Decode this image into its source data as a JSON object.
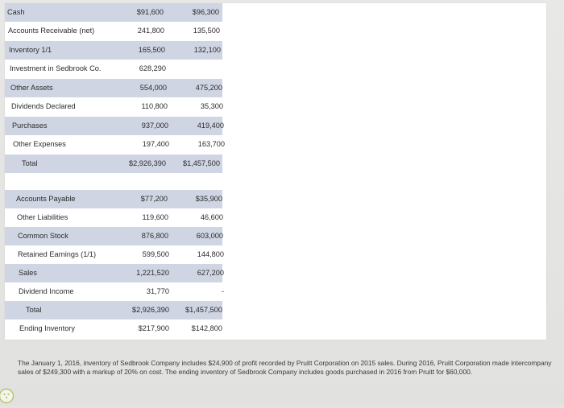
{
  "trial_balance_assets": [
    {
      "label": "Cash",
      "col1": "$91,600",
      "col2": "$96,300"
    },
    {
      "label": "Accounts Receivable (net)",
      "col1": "241,800",
      "col2": "135,500"
    },
    {
      "label": "Inventory 1/1",
      "col1": "165,500",
      "col2": "132,100"
    },
    {
      "label": "Investment in Sedbrook Co.",
      "col1": "628,290",
      "col2": ""
    },
    {
      "label": "Other Assets",
      "col1": "554,000",
      "col2": "475,200"
    },
    {
      "label": "Dividends Declared",
      "col1": "110,800",
      "col2": "35,300"
    },
    {
      "label": "Purchases",
      "col1": "937,000",
      "col2": "419,400"
    },
    {
      "label": "Other Expenses",
      "col1": "197,400",
      "col2": "163,700"
    },
    {
      "label": "Total",
      "col1": "$2,926,390",
      "col2": "$1,457,500"
    }
  ],
  "trial_balance_credits": [
    {
      "label": "Accounts Payable",
      "col1": "$77,200",
      "col2": "$35,900"
    },
    {
      "label": "Other Liabilities",
      "col1": "119,600",
      "col2": "46,600"
    },
    {
      "label": "Common Stock",
      "col1": "876,800",
      "col2": "603,000"
    },
    {
      "label": "Retained Earnings (1/1)",
      "col1": "599,500",
      "col2": "144,800"
    },
    {
      "label": "Sales",
      "col1": "1,221,520",
      "col2": "627,200"
    },
    {
      "label": "Dividend Income",
      "col1": "31,770",
      "col2": "-"
    },
    {
      "label": "Total",
      "col1": "$2,926,390",
      "col2": "$1,457,500"
    },
    {
      "label": "Ending Inventory",
      "col1": "$217,900",
      "col2": "$142,800"
    }
  ],
  "note": "The January 1, 2016, inventory of Sedbrook Company includes $24,900 of profit recorded by Pruitt Corporation on 2015 sales. During 2016, Pruitt Corporation made intercompany sales of $249,300 with a markup of 20% on cost. The ending inventory of Sedbrook Company includes goods purchased in 2016 from Pruitt for $60,000."
}
